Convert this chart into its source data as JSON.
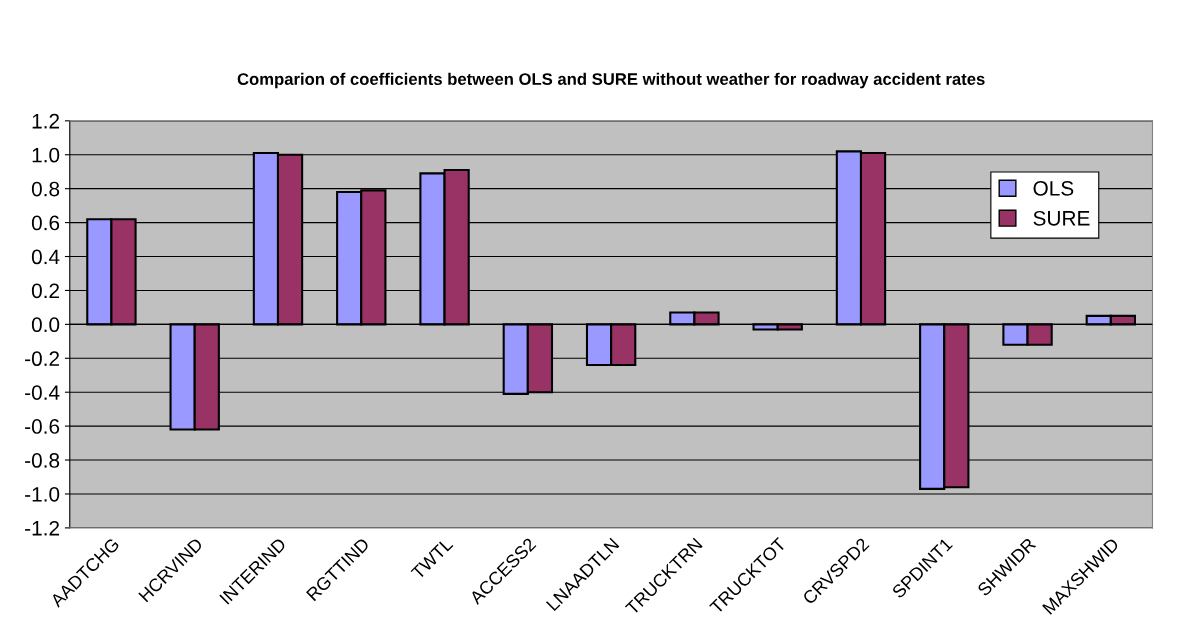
{
  "chart_data": {
    "type": "bar",
    "title": "Comparion of coefficients between OLS and SURE without weather for roadway accident rates",
    "categories": [
      "AADTCHG",
      "HCRVIND",
      "INTERIND",
      "RGTTIND",
      "TWTL",
      "ACCESS2",
      "LNAADTLN",
      "TRUCKTRN",
      "TRUCKTOT",
      "CRVSPD2",
      "SPDINT1",
      "SHWIDR",
      "MAXSHWID"
    ],
    "series": [
      {
        "name": "OLS",
        "color": "#9999ff",
        "values": [
          0.62,
          -0.62,
          1.01,
          0.78,
          0.89,
          -0.41,
          -0.24,
          0.07,
          -0.03,
          1.02,
          -0.97,
          -0.12,
          0.05
        ]
      },
      {
        "name": "SURE",
        "color": "#993366",
        "values": [
          0.62,
          -0.62,
          1.0,
          0.79,
          0.91,
          -0.4,
          -0.24,
          0.07,
          -0.03,
          1.01,
          -0.96,
          -0.12,
          0.05
        ]
      }
    ],
    "ylim": [
      -1.2,
      1.2
    ],
    "yticks": [
      {
        "value": -1.2,
        "label": "-1.2"
      },
      {
        "value": -1.0,
        "label": "-1.0"
      },
      {
        "value": -0.8,
        "label": "-0.8"
      },
      {
        "value": -0.6,
        "label": "-0.6"
      },
      {
        "value": -0.4,
        "label": "-0.4"
      },
      {
        "value": -0.2,
        "label": "-0.2"
      },
      {
        "value": 0,
        "label": "0.0"
      },
      {
        "value": 0.2,
        "label": "0.2"
      },
      {
        "value": 0.4,
        "label": "0.4"
      },
      {
        "value": 0.6,
        "label": "0.6"
      },
      {
        "value": 0.8,
        "label": "0.8"
      },
      {
        "value": 1.0,
        "label": "1.0"
      },
      {
        "value": 1.2,
        "label": "1.2"
      }
    ],
    "grid": "y",
    "legend": "top right"
  }
}
